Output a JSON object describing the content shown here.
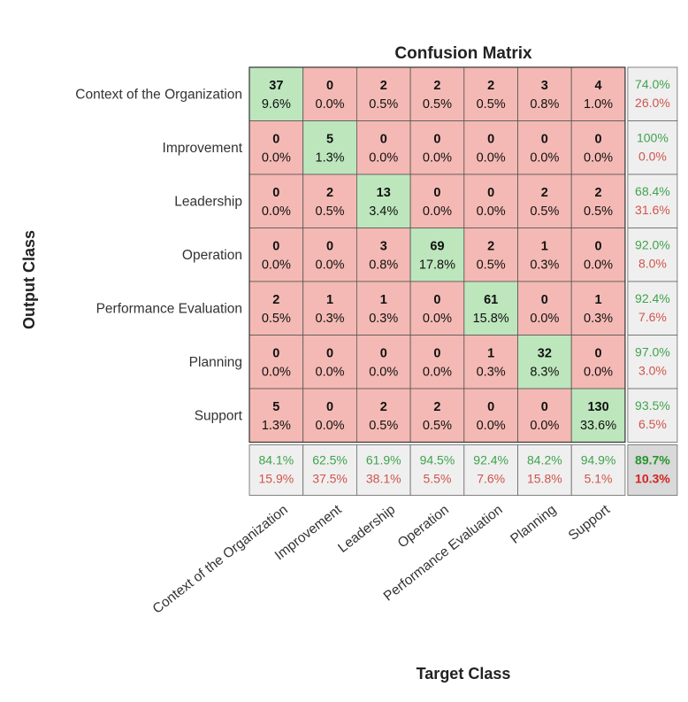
{
  "chart_data": {
    "type": "heatmap",
    "title": "Confusion Matrix",
    "xlabel": "Target Class",
    "ylabel": "Output Class",
    "classes": [
      "Context of the Organization",
      "Improvement",
      "Leadership",
      "Operation",
      "Performance Evaluation",
      "Planning",
      "Support"
    ],
    "counts": [
      [
        37,
        0,
        2,
        2,
        2,
        3,
        4
      ],
      [
        0,
        5,
        0,
        0,
        0,
        0,
        0
      ],
      [
        0,
        2,
        13,
        0,
        0,
        2,
        2
      ],
      [
        0,
        0,
        3,
        69,
        2,
        1,
        0
      ],
      [
        2,
        1,
        1,
        0,
        61,
        0,
        1
      ],
      [
        0,
        0,
        0,
        0,
        1,
        32,
        0
      ],
      [
        5,
        0,
        2,
        2,
        0,
        0,
        130
      ]
    ],
    "percentages": [
      [
        "9.6%",
        "0.0%",
        "0.5%",
        "0.5%",
        "0.5%",
        "0.8%",
        "1.0%"
      ],
      [
        "0.0%",
        "1.3%",
        "0.0%",
        "0.0%",
        "0.0%",
        "0.0%",
        "0.0%"
      ],
      [
        "0.0%",
        "0.5%",
        "3.4%",
        "0.0%",
        "0.0%",
        "0.5%",
        "0.5%"
      ],
      [
        "0.0%",
        "0.0%",
        "0.8%",
        "17.8%",
        "0.5%",
        "0.3%",
        "0.0%"
      ],
      [
        "0.5%",
        "0.3%",
        "0.3%",
        "0.0%",
        "15.8%",
        "0.0%",
        "0.3%"
      ],
      [
        "0.0%",
        "0.0%",
        "0.0%",
        "0.0%",
        "0.3%",
        "8.3%",
        "0.0%"
      ],
      [
        "1.3%",
        "0.0%",
        "0.5%",
        "0.5%",
        "0.0%",
        "0.0%",
        "33.6%"
      ]
    ],
    "row_summary": [
      [
        "74.0%",
        "26.0%"
      ],
      [
        "100%",
        "0.0%"
      ],
      [
        "68.4%",
        "31.6%"
      ],
      [
        "92.0%",
        "8.0%"
      ],
      [
        "92.4%",
        "7.6%"
      ],
      [
        "97.0%",
        "3.0%"
      ],
      [
        "93.5%",
        "6.5%"
      ]
    ],
    "col_summary": [
      [
        "84.1%",
        "15.9%"
      ],
      [
        "62.5%",
        "37.5%"
      ],
      [
        "61.9%",
        "38.1%"
      ],
      [
        "94.5%",
        "5.5%"
      ],
      [
        "92.4%",
        "7.6%"
      ],
      [
        "84.2%",
        "15.8%"
      ],
      [
        "94.9%",
        "5.1%"
      ]
    ],
    "overall": [
      "89.7%",
      "10.3%"
    ],
    "colors": {
      "diagonal": "#bde6bd",
      "off_diagonal": "#f4b9b4",
      "summary_bg": "#efefef",
      "overall_bg": "#d9d9d9",
      "good_text": "#3fa34d",
      "bad_text": "#d0544a"
    }
  }
}
